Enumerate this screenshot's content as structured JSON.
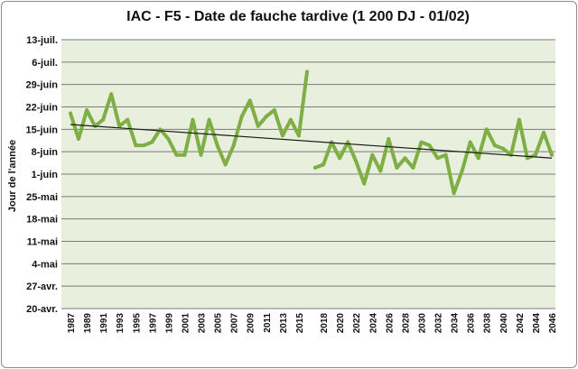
{
  "chart_data": {
    "type": "line",
    "title": "IAC - F5 - Date de fauche tardive (1 200 DJ - 01/02)",
    "xlabel": "",
    "ylabel": "Jour de l'année",
    "x_tick_labels": [
      "1987",
      "1989",
      "1991",
      "1993",
      "1995",
      "1997",
      "1999",
      "2001",
      "2003",
      "2005",
      "2007",
      "2009",
      "2011",
      "2013",
      "2015",
      "2018",
      "2020",
      "2022",
      "2024",
      "2026",
      "2028",
      "2030",
      "2032",
      "2034",
      "2036",
      "2038",
      "2040",
      "2042",
      "2044",
      "2046"
    ],
    "y_tick_labels": [
      "20-avr.",
      "27-avr.",
      "4-mai",
      "11-mai",
      "18-mai",
      "25-mai",
      "1-juin",
      "8-juin",
      "15-juin",
      "22-juin",
      "29-juin",
      "6-juil.",
      "13-juil."
    ],
    "y_tick_values": [
      110,
      117,
      124,
      131,
      138,
      145,
      152,
      159,
      166,
      173,
      180,
      187,
      194
    ],
    "ylim": [
      110,
      194
    ],
    "grid": true,
    "legend": "none",
    "colors": {
      "series": "#7fae45",
      "trend": "#1a1a1a",
      "plot_bg": "#e8f0dd",
      "grid": "#7a7a7a"
    },
    "series": [
      {
        "x": [
          1987,
          1988,
          1989,
          1990,
          1991,
          1992,
          1993,
          1994,
          1995,
          1996,
          1997,
          1998,
          1999,
          2000,
          2001,
          2002,
          2003,
          2004,
          2005,
          2006,
          2007,
          2008,
          2009,
          2010,
          2011,
          2012,
          2013,
          2014,
          2015,
          2016
        ],
        "values": [
          171,
          163,
          172,
          167,
          169,
          177,
          167,
          169,
          161,
          161,
          162,
          166,
          163,
          158,
          158,
          169,
          158,
          169,
          161,
          155,
          161,
          170,
          175,
          167,
          170,
          172,
          164,
          169,
          164,
          184
        ]
      },
      {
        "x": [
          2017,
          2018,
          2019,
          2020,
          2021,
          2022,
          2023,
          2024,
          2025,
          2026,
          2027,
          2028,
          2029,
          2030,
          2031,
          2032,
          2033,
          2034,
          2035,
          2036,
          2037,
          2038,
          2039,
          2040,
          2041,
          2042,
          2043,
          2044,
          2045,
          2046
        ],
        "values": [
          154,
          155,
          162,
          157,
          162,
          156,
          149,
          158,
          153,
          163,
          154,
          157,
          154,
          162,
          161,
          157,
          158,
          146,
          153,
          162,
          157,
          166,
          161,
          160,
          158,
          169,
          157,
          158,
          165,
          158
        ]
      }
    ],
    "trendline": {
      "x": [
        1987,
        2046
      ],
      "y": [
        167.5,
        157
      ]
    }
  }
}
